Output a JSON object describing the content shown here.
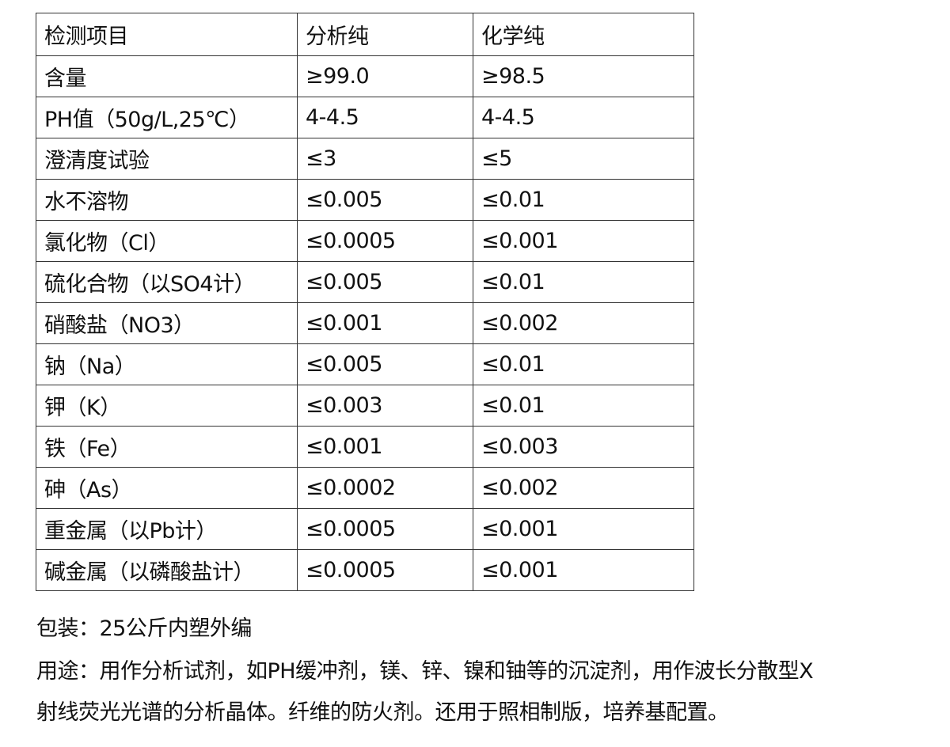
{
  "table": {
    "headers": [
      "检测项目",
      "分析纯",
      "化学纯"
    ],
    "rows": [
      [
        "含量",
        "≥99.0",
        "≥98.5"
      ],
      [
        "PH值（50g/L,25℃）",
        "4-4.5",
        "4-4.5"
      ],
      [
        "澄清度试验",
        "≤3",
        "≤5"
      ],
      [
        "水不溶物",
        "≤0.005",
        "≤0.01"
      ],
      [
        "氯化物（Cl）",
        "≤0.0005",
        "≤0.001"
      ],
      [
        "硫化合物（以SO4计）",
        "≤0.005",
        "≤0.01"
      ],
      [
        "硝酸盐（NO3）",
        "≤0.001",
        "≤0.002"
      ],
      [
        "钠（Na）",
        "≤0.005",
        "≤0.01"
      ],
      [
        "钾（K）",
        "≤0.003",
        "≤0.01"
      ],
      [
        "铁（Fe）",
        "≤0.001",
        "≤0.003"
      ],
      [
        "砷（As）",
        "≤0.0002",
        "≤0.002"
      ],
      [
        "重金属（以Pb计）",
        "≤0.0005",
        "≤0.001"
      ],
      [
        "碱金属（以磷酸盐计）",
        "≤0.0005",
        "≤0.001"
      ]
    ]
  },
  "packaging": "包装：25公斤内塑外编",
  "usage_line1": "用途：用作分析试剂，如PH缓冲剂，镁、锌、镍和铀等的沉淀剂，用作波长分散型X",
  "usage_line2": "射线荧光光谱的分析晶体。纤维的防火剂。还用于照相制版，培养基配置。"
}
